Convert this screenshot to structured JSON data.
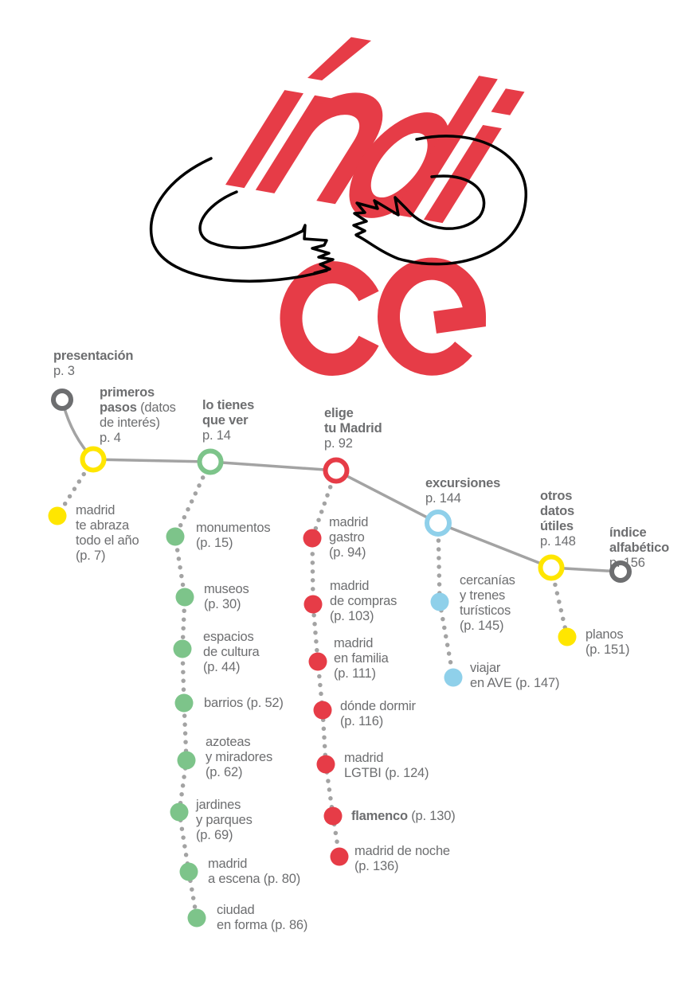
{
  "title": {
    "line1": "índi",
    "line2": "ce",
    "color": "#e63c47"
  },
  "colors": {
    "gray": "#6d6e70",
    "line": "#a3a3a3",
    "yellow": "#ffe600",
    "green": "#7dc48a",
    "red": "#e63c47",
    "blue": "#8fd0ea"
  },
  "sections": [
    {
      "title": "presentación",
      "extra": "",
      "page": "p. 3",
      "color": "gray",
      "items": []
    },
    {
      "title": "primeros\npasos",
      "extra": " (datos\nde interés)",
      "page": "p. 4",
      "color": "yellow",
      "items": [
        {
          "label": "madrid\nte abraza\ntodo el año\n(p. 7)"
        }
      ]
    },
    {
      "title": "lo tienes\nque ver",
      "extra": "",
      "page": "p. 14",
      "color": "green",
      "items": [
        {
          "label": "monumentos\n(p. 15)"
        },
        {
          "label": "museos\n(p. 30)"
        },
        {
          "label": "espacios\nde cultura\n(p. 44)"
        },
        {
          "label": "barrios (p. 52)"
        },
        {
          "label": "azoteas\ny miradores\n(p. 62)"
        },
        {
          "label": "jardines\ny parques\n(p. 69)"
        },
        {
          "label": "madrid\na escena (p. 80)"
        },
        {
          "label": "ciudad\nen forma (p. 86)"
        }
      ]
    },
    {
      "title": "elige\ntu Madrid",
      "extra": "",
      "page": "p. 92",
      "color": "red",
      "items": [
        {
          "label": "madrid\ngastro\n(p. 94)"
        },
        {
          "label": "madrid\nde compras\n(p. 103)"
        },
        {
          "label": "madrid\nen familia\n(p. 111)"
        },
        {
          "label": "dónde dormir\n(p. 116)"
        },
        {
          "label": "madrid\nLGTBI (p. 124)"
        },
        {
          "bold": "flamenco",
          "label": " (p. 130)"
        },
        {
          "label": "madrid de noche\n(p. 136)"
        }
      ]
    },
    {
      "title": "excursiones",
      "extra": "",
      "page": "p. 144",
      "color": "blue",
      "items": [
        {
          "label": "cercanías\ny trenes\nturísticos\n(p. 145)"
        },
        {
          "label": "viajar\nen AVE (p. 147)"
        }
      ]
    },
    {
      "title": "otros\ndatos\nútiles",
      "extra": "",
      "page": "p. 148",
      "color": "yellow",
      "items": [
        {
          "label": "planos\n(p. 151)"
        }
      ]
    },
    {
      "title": "índice\nalfabético",
      "extra": "",
      "page": "p. 156",
      "color": "gray",
      "items": []
    }
  ]
}
